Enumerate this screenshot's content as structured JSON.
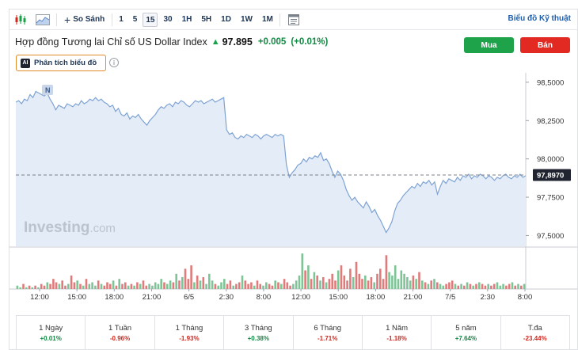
{
  "toolbar": {
    "compare_label": "So Sánh",
    "intervals": [
      "1",
      "5",
      "15",
      "30",
      "1H",
      "5H",
      "1D",
      "1W",
      "1M"
    ],
    "active_interval": "15",
    "technical_chart_label": "Biểu đồ Kỹ thuật"
  },
  "header": {
    "title": "Hợp đồng Tương lai Chỉ số US Dollar Index",
    "price": "97.895",
    "change": "+0.005",
    "change_pct": "(+0.01%)"
  },
  "buttons": {
    "buy": "Mua",
    "sell": "Bán",
    "ai_analysis": "Phân tích biểu đồ",
    "ai_badge": "AI"
  },
  "watermark": {
    "brand": "Investing",
    "suffix": ".com"
  },
  "news_marker": "N",
  "chart_data": {
    "type": "line",
    "y_axis_ticks": [
      "98,5000",
      "98,2500",
      "98,0000",
      "97,7500",
      "97,5000"
    ],
    "current_price_label": "97,8970",
    "x_axis_ticks": [
      "12:00",
      "15:00",
      "18:00",
      "21:00",
      "6/5",
      "2:30",
      "8:00",
      "12:00",
      "15:00",
      "18:00",
      "21:00",
      "7/5",
      "2:30",
      "8:00"
    ],
    "ylim": [
      97.43,
      98.52
    ],
    "price_series": [
      98.37,
      98.38,
      98.36,
      98.39,
      98.38,
      98.42,
      98.4,
      98.44,
      98.43,
      98.42,
      98.41,
      98.43,
      98.39,
      98.36,
      98.32,
      98.35,
      98.34,
      98.33,
      98.36,
      98.35,
      98.34,
      98.36,
      98.35,
      98.38,
      98.36,
      98.37,
      98.39,
      98.38,
      98.4,
      98.38,
      98.39,
      98.37,
      98.36,
      98.34,
      98.35,
      98.31,
      98.33,
      98.29,
      98.28,
      98.3,
      98.26,
      98.28,
      98.27,
      98.29,
      98.26,
      98.24,
      98.22,
      98.25,
      98.27,
      98.29,
      98.32,
      98.34,
      98.33,
      98.35,
      98.36,
      98.34,
      98.37,
      98.36,
      98.38,
      98.37,
      98.35,
      98.34,
      98.36,
      98.38,
      98.37,
      98.38,
      98.36,
      98.37,
      98.38,
      98.39,
      98.37,
      98.38,
      98.39,
      98.4,
      98.19,
      98.16,
      98.17,
      98.14,
      98.13,
      98.15,
      98.14,
      98.16,
      98.15,
      98.14,
      98.16,
      98.15,
      98.13,
      98.15,
      98.16,
      98.15,
      98.14,
      98.16,
      98.15,
      98.16,
      98.15,
      97.96,
      97.88,
      97.91,
      97.93,
      97.96,
      97.97,
      98.0,
      97.98,
      98.01,
      98.0,
      98.02,
      98.01,
      98.04,
      97.99,
      98.0,
      97.97,
      97.92,
      97.88,
      97.92,
      97.9,
      97.86,
      97.8,
      97.76,
      97.73,
      97.75,
      97.72,
      97.7,
      97.68,
      97.72,
      97.69,
      97.65,
      97.67,
      97.63,
      97.6,
      97.56,
      97.52,
      97.55,
      97.59,
      97.66,
      97.71,
      97.73,
      97.76,
      97.78,
      97.8,
      97.82,
      97.81,
      97.84,
      97.82,
      97.85,
      97.84,
      97.86,
      97.83,
      97.85,
      97.77,
      97.82,
      97.86,
      97.84,
      97.87,
      97.86,
      97.85,
      97.88,
      97.86,
      97.89,
      97.88,
      97.9,
      97.87,
      97.89,
      97.88,
      97.9,
      97.89,
      97.87,
      97.89,
      97.88,
      97.86,
      97.88,
      97.87,
      97.89,
      97.9,
      97.88,
      97.87,
      97.89,
      97.88,
      97.9,
      97.88,
      97.89
    ],
    "volume_series": [
      2,
      1,
      3,
      1,
      2,
      1,
      2,
      1,
      3,
      2,
      4,
      3,
      6,
      4,
      3,
      5,
      2,
      3,
      8,
      4,
      5,
      3,
      2,
      6,
      3,
      4,
      2,
      5,
      3,
      2,
      4,
      3,
      5,
      2,
      6,
      3,
      4,
      2,
      3,
      2,
      4,
      3,
      5,
      2,
      3,
      2,
      4,
      3,
      6,
      4,
      3,
      5,
      4,
      9,
      5,
      7,
      12,
      6,
      14,
      4,
      8,
      5,
      7,
      3,
      9,
      5,
      3,
      2,
      4,
      6,
      3,
      5,
      2,
      3,
      4,
      8,
      5,
      3,
      4,
      2,
      5,
      3,
      2,
      4,
      3,
      2,
      5,
      4,
      3,
      6,
      4,
      2,
      3,
      5,
      8,
      21,
      11,
      14,
      6,
      10,
      8,
      5,
      7,
      4,
      6,
      9,
      5,
      11,
      14,
      8,
      5,
      12,
      7,
      16,
      9,
      6,
      8,
      5,
      7,
      4,
      9,
      12,
      6,
      20,
      10,
      8,
      14,
      6,
      11,
      9,
      7,
      5,
      8,
      6,
      10,
      5,
      4,
      3,
      5,
      6,
      4,
      3,
      2,
      3,
      4,
      5,
      3,
      2,
      3,
      2,
      4,
      3,
      2,
      3,
      4,
      3,
      2,
      3,
      2,
      3,
      4,
      2,
      3,
      2,
      3,
      4,
      2,
      3,
      2,
      3
    ],
    "grid": false,
    "colors": {
      "line": "#7ea3d4",
      "fill": "#e3ecf7",
      "volume_up": "#7fc497",
      "volume_down": "#e07b7b",
      "current_price_box": "#1f2430"
    }
  },
  "periods": [
    {
      "label": "1 Ngày",
      "value": "+0.01%",
      "dir": "pos"
    },
    {
      "label": "1 Tuần",
      "value": "-0.96%",
      "dir": "neg"
    },
    {
      "label": "1 Tháng",
      "value": "-1.93%",
      "dir": "neg"
    },
    {
      "label": "3 Tháng",
      "value": "+0.38%",
      "dir": "pos"
    },
    {
      "label": "6 Tháng",
      "value": "-1.71%",
      "dir": "neg"
    },
    {
      "label": "1 Năm",
      "value": "-1.18%",
      "dir": "neg"
    },
    {
      "label": "5 năm",
      "value": "+7.64%",
      "dir": "pos"
    },
    {
      "label": "T.đa",
      "value": "-23.44%",
      "dir": "neg"
    }
  ]
}
